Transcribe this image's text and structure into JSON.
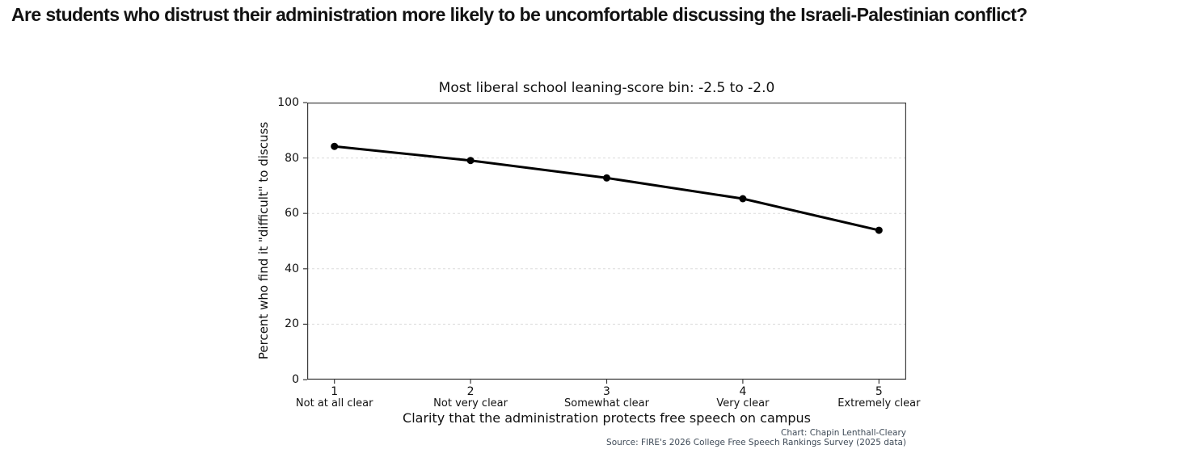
{
  "page": {
    "headline": "Are students who distrust their administration more likely to be uncomfortable discussing the Israeli-Palestinian conflict?"
  },
  "chart_data": {
    "type": "line",
    "title": "Most liberal school leaning-score bin: -2.5 to -2.0",
    "xlabel": "Clarity that the administration protects free speech on campus",
    "ylabel": "Percent who find it \"difficult\" to discuss",
    "x": [
      1,
      2,
      3,
      4,
      5
    ],
    "values": [
      84.2,
      79.1,
      72.8,
      65.3,
      53.9
    ],
    "xtick_numbers": [
      "1",
      "2",
      "3",
      "4",
      "5"
    ],
    "categories": [
      "Not at all clear",
      "Not very clear",
      "Somewhat clear",
      "Very clear",
      "Extremely clear"
    ],
    "yticks": [
      0,
      20,
      40,
      60,
      80,
      100
    ],
    "ylim": [
      0,
      100
    ],
    "xlim": [
      0.8,
      5.2
    ],
    "grid": "horizontal-dashed",
    "legend": "none",
    "line_color": "#000000",
    "marker": "circle",
    "gridline_color": "#dcdcdc",
    "spine_color": "#3c3c3c"
  },
  "credits": {
    "chart_credit": "Chart: Chapin Lenthall-Cleary",
    "source_credit": "Source: FIRE's 2026 College Free Speech Rankings Survey (2025 data)"
  }
}
